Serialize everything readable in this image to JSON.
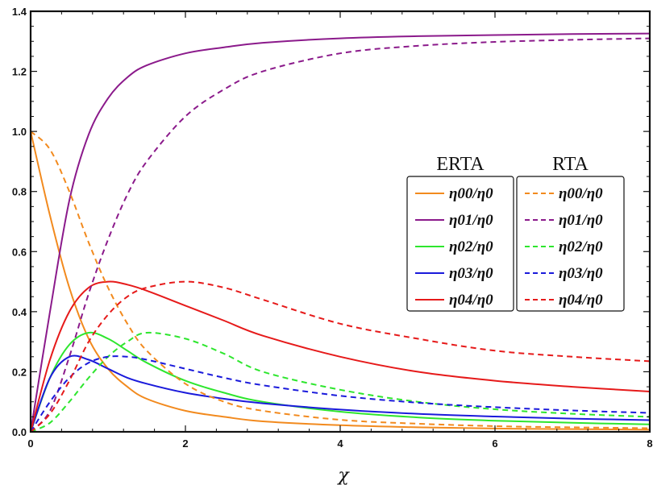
{
  "chart_data": {
    "type": "line",
    "xlabel": "χ",
    "ylabel": "",
    "xlim": [
      0,
      8
    ],
    "ylim": [
      0,
      1.4
    ],
    "x_ticks": [
      "0",
      "2",
      "4",
      "6",
      "8"
    ],
    "y_ticks": [
      "0.0",
      "0.2",
      "0.4",
      "0.6",
      "0.8",
      "1.0",
      "1.2",
      "1.4"
    ],
    "grid": false,
    "legend_placement": "center-right",
    "legend_groups": [
      {
        "title": "ERTA",
        "line_style": "solid",
        "entries": [
          {
            "label": "η00/η0",
            "color": "#f28a1e"
          },
          {
            "label": "η01/η0",
            "color": "#8b1a8b"
          },
          {
            "label": "η02/η0",
            "color": "#2ee62e"
          },
          {
            "label": "η03/η0",
            "color": "#1a1adb"
          },
          {
            "label": "η04/η0",
            "color": "#e61a1a"
          }
        ]
      },
      {
        "title": "RTA",
        "line_style": "dashed",
        "entries": [
          {
            "label": "η00/η0",
            "color": "#f28a1e"
          },
          {
            "label": "η01/η0",
            "color": "#8b1a8b"
          },
          {
            "label": "η02/η0",
            "color": "#2ee62e"
          },
          {
            "label": "η03/η0",
            "color": "#1a1adb"
          },
          {
            "label": "η04/η0",
            "color": "#e61a1a"
          }
        ]
      }
    ],
    "x": [
      0,
      0.25,
      0.5,
      0.75,
      1,
      1.25,
      1.5,
      2,
      2.5,
      3,
      4,
      5,
      6,
      7,
      8
    ],
    "series": [
      {
        "name": "η00/η0 (ERTA)",
        "color": "#f28a1e",
        "dashed": false,
        "values": [
          1.0,
          0.72,
          0.48,
          0.31,
          0.21,
          0.15,
          0.11,
          0.07,
          0.05,
          0.035,
          0.022,
          0.015,
          0.011,
          0.009,
          0.007
        ]
      },
      {
        "name": "η01/η0 (ERTA)",
        "color": "#8b1a8b",
        "dashed": false,
        "values": [
          0.0,
          0.4,
          0.77,
          0.99,
          1.11,
          1.18,
          1.22,
          1.26,
          1.28,
          1.295,
          1.31,
          1.317,
          1.321,
          1.324,
          1.326
        ]
      },
      {
        "name": "η02/η0 (ERTA)",
        "color": "#2ee62e",
        "dashed": false,
        "values": [
          0.0,
          0.18,
          0.29,
          0.33,
          0.31,
          0.27,
          0.23,
          0.17,
          0.13,
          0.1,
          0.067,
          0.048,
          0.037,
          0.03,
          0.025
        ]
      },
      {
        "name": "η03/η0 (ERTA)",
        "color": "#1a1adb",
        "dashed": false,
        "values": [
          0.0,
          0.18,
          0.25,
          0.24,
          0.21,
          0.18,
          0.16,
          0.13,
          0.11,
          0.095,
          0.074,
          0.06,
          0.051,
          0.044,
          0.039
        ]
      },
      {
        "name": "η04/η0 (ERTA)",
        "color": "#e61a1a",
        "dashed": false,
        "values": [
          0.0,
          0.24,
          0.4,
          0.48,
          0.5,
          0.49,
          0.47,
          0.42,
          0.37,
          0.32,
          0.25,
          0.2,
          0.17,
          0.15,
          0.134
        ]
      },
      {
        "name": "η00/η0 (RTA)",
        "color": "#f28a1e",
        "dashed": true,
        "values": [
          1.0,
          0.94,
          0.8,
          0.63,
          0.48,
          0.36,
          0.27,
          0.16,
          0.1,
          0.07,
          0.04,
          0.027,
          0.019,
          0.015,
          0.012
        ]
      },
      {
        "name": "η01/η0 (RTA)",
        "color": "#8b1a8b",
        "dashed": true,
        "values": [
          0.0,
          0.07,
          0.25,
          0.46,
          0.64,
          0.79,
          0.9,
          1.05,
          1.14,
          1.2,
          1.26,
          1.285,
          1.298,
          1.305,
          1.31
        ]
      },
      {
        "name": "η02/η0 (RTA)",
        "color": "#2ee62e",
        "dashed": true,
        "values": [
          0.0,
          0.03,
          0.1,
          0.18,
          0.25,
          0.3,
          0.33,
          0.31,
          0.26,
          0.2,
          0.14,
          0.1,
          0.075,
          0.06,
          0.05
        ]
      },
      {
        "name": "η03/η0 (RTA)",
        "color": "#1a1adb",
        "dashed": true,
        "values": [
          0.0,
          0.1,
          0.18,
          0.23,
          0.25,
          0.25,
          0.24,
          0.21,
          0.18,
          0.155,
          0.12,
          0.097,
          0.082,
          0.071,
          0.063
        ]
      },
      {
        "name": "η04/η0 (RTA)",
        "color": "#e61a1a",
        "dashed": true,
        "values": [
          0.0,
          0.06,
          0.17,
          0.3,
          0.39,
          0.45,
          0.48,
          0.5,
          0.48,
          0.44,
          0.36,
          0.31,
          0.27,
          0.25,
          0.235
        ]
      }
    ]
  }
}
